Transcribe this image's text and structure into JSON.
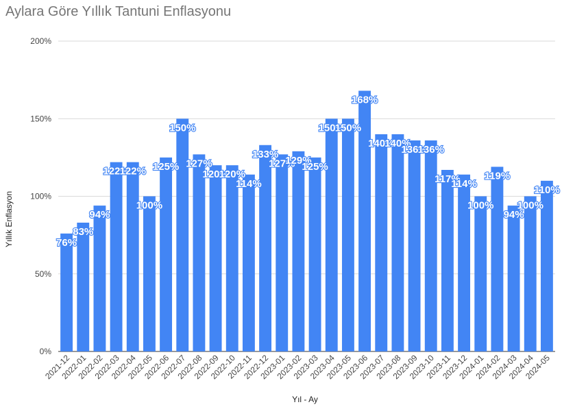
{
  "chart_data": {
    "type": "bar",
    "title": "Aylara Göre Yıllık Tantuni Enflasyonu",
    "xlabel": "Yıl - Ay",
    "ylabel": "Yıllık Enflasyon",
    "ylim": [
      0,
      200
    ],
    "yticks": [
      0,
      50,
      100,
      150,
      200
    ],
    "ytick_labels": [
      "0%",
      "50%",
      "100%",
      "150%",
      "200%"
    ],
    "grid": true,
    "legend": "none",
    "color": "#4285f4",
    "categories": [
      "2021-12",
      "2022-01",
      "2022-02",
      "2022-03",
      "2022-04",
      "2022-05",
      "2022-06",
      "2022-07",
      "2022-08",
      "2022-09",
      "2022-10",
      "2022-11",
      "2022-12",
      "2023-01",
      "2023-02",
      "2023-03",
      "2023-04",
      "2023-05",
      "2023-06",
      "2023-07",
      "2023-08",
      "2023-09",
      "2023-10",
      "2023-11",
      "2023-12",
      "2024-01",
      "2024-02",
      "2024-03",
      "2024-04",
      "2024-05"
    ],
    "values": [
      76,
      83,
      94,
      122,
      122,
      100,
      125,
      150,
      127,
      120,
      120,
      114,
      133,
      127,
      129,
      125,
      150,
      150,
      168,
      140,
      140,
      136,
      136,
      117,
      114,
      100,
      119,
      94,
      100,
      110
    ],
    "data_labels": [
      "76%",
      "83%",
      "94%",
      "122%",
      "122%",
      "100%",
      "125%",
      "150%",
      "127%",
      "120%",
      "120%",
      "114%",
      "133%",
      "127%",
      "129%",
      "125%",
      "150%",
      "150%",
      "168%",
      "140%",
      "140%",
      "136%",
      "136%",
      "117%",
      "114%",
      "100%",
      "119%",
      "94%",
      "100%",
      "110%"
    ]
  }
}
